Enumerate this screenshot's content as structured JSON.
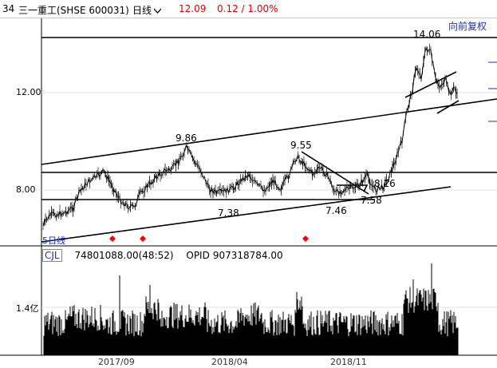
{
  "header": {
    "code_prefix": "34",
    "title": "三一重工(SHSE 600031)",
    "period": "日线",
    "price": "12.09",
    "change": "0.12 / 1.00%",
    "adjust_mode": "向前复权"
  },
  "price_chart": {
    "y_axis_labels": [
      "12.00",
      "8.00"
    ],
    "annotations": [
      "14.06",
      "9.86",
      "9.55",
      "7.38",
      "7.46",
      "7.58",
      "8.26"
    ],
    "period_label": "5日线"
  },
  "volume_chart": {
    "indicator_label": "CJL",
    "volume_value": "74801088.00(48:52)",
    "opid_label": "OPID",
    "opid_value": "907318784.00",
    "y_axis_label": "1.4亿"
  },
  "x_axis_labels": [
    "2017/09",
    "2018/04",
    "2018/11"
  ],
  "colors": {
    "up": "#ff0000",
    "down": "#000000",
    "accent": "#1a32b4",
    "price_text": "#e00000"
  },
  "icons": [
    "chevron-down-icon",
    "diamond-marker-icon"
  ]
}
